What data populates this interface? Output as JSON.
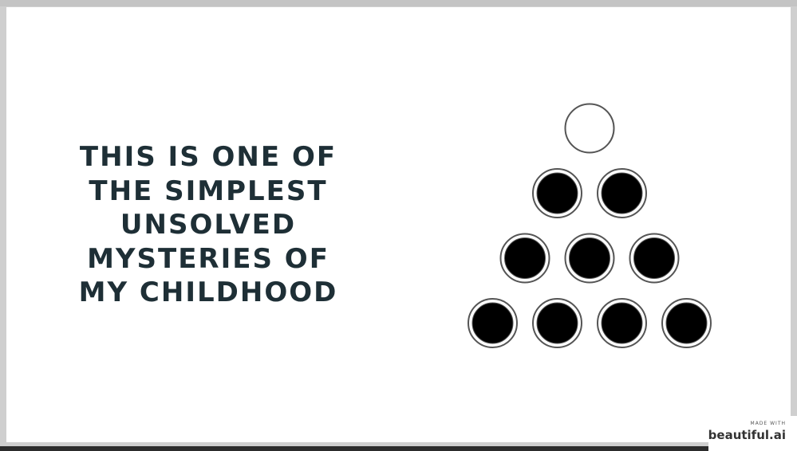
{
  "headline": {
    "lines": [
      "THIS IS ONE OF",
      "THE SIMPLEST",
      "UNSOLVED",
      "MYSTERIES OF",
      "MY CHILDHOOD"
    ]
  },
  "pyramid": {
    "rows": [
      [
        "empty"
      ],
      [
        "filled",
        "filled"
      ],
      [
        "filled",
        "filled",
        "filled"
      ],
      [
        "filled",
        "filled",
        "filled",
        "filled"
      ]
    ]
  },
  "badge": {
    "made_with": "MADE WITH",
    "brand": "beautiful.ai"
  },
  "colors": {
    "headline": "#1e2f36",
    "circle_fill": "#000000",
    "circle_ring": "#555555",
    "slide_background": "#ffffff",
    "frame": "#cfcfcf"
  }
}
